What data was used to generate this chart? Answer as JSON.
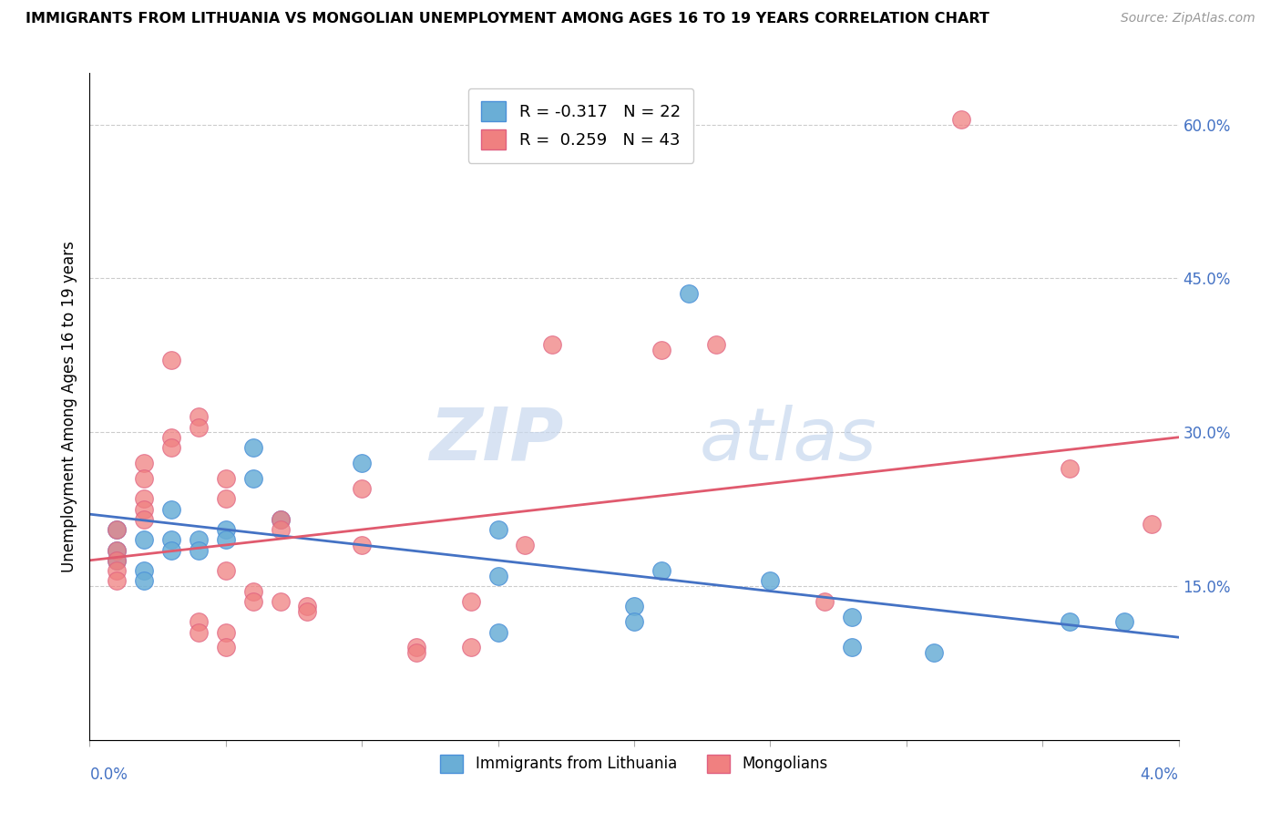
{
  "title": "IMMIGRANTS FROM LITHUANIA VS MONGOLIAN UNEMPLOYMENT AMONG AGES 16 TO 19 YEARS CORRELATION CHART",
  "source": "Source: ZipAtlas.com",
  "ylabel": "Unemployment Among Ages 16 to 19 years",
  "yticks": [
    0.0,
    0.15,
    0.3,
    0.45,
    0.6
  ],
  "ytick_labels": [
    "",
    "15.0%",
    "30.0%",
    "45.0%",
    "60.0%"
  ],
  "xmin": 0.0,
  "xmax": 0.04,
  "ymin": 0.0,
  "ymax": 0.65,
  "watermark_zip": "ZIP",
  "watermark_atlas": "atlas",
  "blue_color": "#6aaed6",
  "blue_edge": "#4a90d9",
  "pink_color": "#f08080",
  "pink_edge": "#e06080",
  "blue_line_color": "#4472c4",
  "pink_line_color": "#e05a6e",
  "scatter_blue": [
    [
      0.001,
      0.205
    ],
    [
      0.001,
      0.185
    ],
    [
      0.001,
      0.175
    ],
    [
      0.002,
      0.195
    ],
    [
      0.002,
      0.165
    ],
    [
      0.002,
      0.155
    ],
    [
      0.003,
      0.225
    ],
    [
      0.003,
      0.195
    ],
    [
      0.003,
      0.185
    ],
    [
      0.004,
      0.195
    ],
    [
      0.004,
      0.185
    ],
    [
      0.005,
      0.205
    ],
    [
      0.005,
      0.195
    ],
    [
      0.006,
      0.285
    ],
    [
      0.006,
      0.255
    ],
    [
      0.007,
      0.215
    ],
    [
      0.01,
      0.27
    ],
    [
      0.015,
      0.205
    ],
    [
      0.015,
      0.16
    ],
    [
      0.015,
      0.105
    ],
    [
      0.02,
      0.13
    ],
    [
      0.02,
      0.115
    ],
    [
      0.021,
      0.165
    ],
    [
      0.022,
      0.435
    ],
    [
      0.025,
      0.155
    ],
    [
      0.028,
      0.12
    ],
    [
      0.028,
      0.09
    ],
    [
      0.031,
      0.085
    ],
    [
      0.036,
      0.115
    ],
    [
      0.038,
      0.115
    ]
  ],
  "scatter_pink": [
    [
      0.001,
      0.205
    ],
    [
      0.001,
      0.185
    ],
    [
      0.001,
      0.175
    ],
    [
      0.001,
      0.165
    ],
    [
      0.001,
      0.155
    ],
    [
      0.002,
      0.27
    ],
    [
      0.002,
      0.255
    ],
    [
      0.002,
      0.235
    ],
    [
      0.002,
      0.225
    ],
    [
      0.002,
      0.215
    ],
    [
      0.003,
      0.37
    ],
    [
      0.003,
      0.295
    ],
    [
      0.003,
      0.285
    ],
    [
      0.004,
      0.315
    ],
    [
      0.004,
      0.305
    ],
    [
      0.004,
      0.115
    ],
    [
      0.004,
      0.105
    ],
    [
      0.005,
      0.255
    ],
    [
      0.005,
      0.235
    ],
    [
      0.005,
      0.165
    ],
    [
      0.005,
      0.105
    ],
    [
      0.005,
      0.09
    ],
    [
      0.006,
      0.145
    ],
    [
      0.006,
      0.135
    ],
    [
      0.007,
      0.215
    ],
    [
      0.007,
      0.205
    ],
    [
      0.007,
      0.135
    ],
    [
      0.008,
      0.13
    ],
    [
      0.008,
      0.125
    ],
    [
      0.01,
      0.245
    ],
    [
      0.01,
      0.19
    ],
    [
      0.012,
      0.09
    ],
    [
      0.012,
      0.085
    ],
    [
      0.014,
      0.135
    ],
    [
      0.014,
      0.09
    ],
    [
      0.016,
      0.19
    ],
    [
      0.017,
      0.385
    ],
    [
      0.021,
      0.38
    ],
    [
      0.023,
      0.385
    ],
    [
      0.027,
      0.135
    ],
    [
      0.032,
      0.605
    ],
    [
      0.036,
      0.265
    ],
    [
      0.039,
      0.21
    ]
  ],
  "blue_trendline": [
    [
      0.0,
      0.22
    ],
    [
      0.04,
      0.1
    ]
  ],
  "pink_trendline": [
    [
      0.0,
      0.175
    ],
    [
      0.04,
      0.295
    ]
  ]
}
